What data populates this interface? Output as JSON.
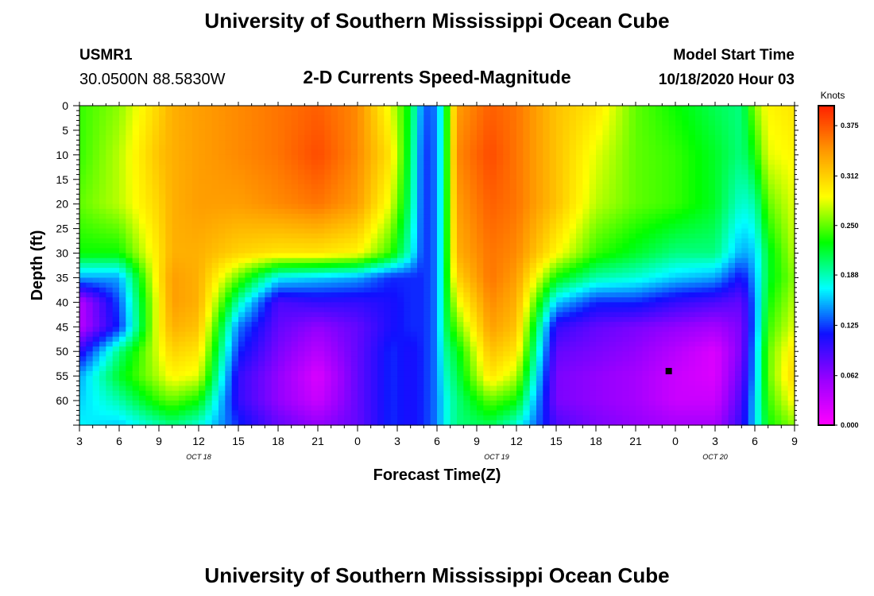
{
  "page": {
    "title": "University of Southern Mississippi Ocean Cube",
    "footer_title": "University of Southern Mississippi Ocean Cube",
    "station_id": "USMR1",
    "station_coords": "30.0500N 88.5830W",
    "model_start_label": "Model Start Time",
    "model_start_value": "10/18/2020 Hour 03"
  },
  "chart_data": {
    "type": "heatmap",
    "title": "2-D Currents Speed-Magnitude",
    "xlabel": "Forecast Time(Z)",
    "ylabel": "Depth (ft)",
    "x_range_hours": [
      0,
      54
    ],
    "y_range_ft": [
      0,
      65
    ],
    "x_tick_hours": [
      0,
      3,
      6,
      9,
      12,
      15,
      18,
      21,
      24,
      27,
      30,
      33,
      36,
      39,
      42,
      45,
      48,
      51,
      54
    ],
    "x_tick_labels": [
      "3",
      "6",
      "9",
      "12",
      "15",
      "18",
      "21",
      "0",
      "3",
      "6",
      "9",
      "12",
      "15",
      "18",
      "21",
      "0",
      "3",
      "6",
      "9"
    ],
    "date_labels": [
      {
        "hour": 9,
        "text": "OCT 18"
      },
      {
        "hour": 31.5,
        "text": "OCT 19"
      },
      {
        "hour": 48,
        "text": "OCT 20"
      }
    ],
    "y_ticks": [
      0,
      5,
      10,
      15,
      20,
      25,
      30,
      35,
      40,
      45,
      50,
      55,
      60
    ],
    "y_tick_labels": [
      "0",
      "5",
      "10",
      "15",
      "20",
      "25",
      "30",
      "35",
      "40",
      "45",
      "50",
      "55",
      "60"
    ],
    "colorbar": {
      "unit_label": "Knots",
      "range": [
        0,
        0.4
      ],
      "ticks": [
        0.0,
        0.062,
        0.125,
        0.188,
        0.25,
        0.312,
        0.375
      ],
      "tick_labels": [
        "0.000",
        "0.062",
        "0.125",
        "0.188",
        "0.250",
        "0.312",
        "0.375"
      ],
      "colors": [
        "#ff00ff",
        "#9900ff",
        "#1010ff",
        "#00ffff",
        "#00ff00",
        "#ffff00",
        "#ff9900",
        "#ff2000"
      ]
    },
    "depths_ft": [
      0,
      10,
      20,
      30,
      35,
      40,
      45,
      50,
      55,
      60,
      65
    ],
    "times_hours": [
      0,
      3,
      6,
      7,
      9,
      12,
      15,
      18,
      21,
      23.5,
      25,
      26,
      27,
      27.5,
      28.5,
      31,
      33,
      36,
      39,
      42,
      45,
      48,
      50,
      51,
      52,
      54
    ],
    "speed_knots": [
      [
        0.24,
        0.24,
        0.25,
        0.23,
        0.15,
        0.04,
        0.04,
        0.1,
        0.15,
        0.16,
        0.17
      ],
      [
        0.26,
        0.27,
        0.27,
        0.23,
        0.15,
        0.13,
        0.12,
        0.2,
        0.22,
        0.19,
        0.16
      ],
      [
        0.31,
        0.32,
        0.31,
        0.3,
        0.3,
        0.29,
        0.29,
        0.28,
        0.27,
        0.24,
        0.19
      ],
      [
        0.33,
        0.33,
        0.33,
        0.33,
        0.34,
        0.34,
        0.33,
        0.31,
        0.29,
        0.25,
        0.2
      ],
      [
        0.34,
        0.34,
        0.34,
        0.33,
        0.33,
        0.33,
        0.32,
        0.3,
        0.28,
        0.23,
        0.18
      ],
      [
        0.35,
        0.35,
        0.34,
        0.31,
        0.25,
        0.19,
        0.14,
        0.12,
        0.1,
        0.1,
        0.12
      ],
      [
        0.36,
        0.36,
        0.35,
        0.3,
        0.17,
        0.09,
        0.08,
        0.07,
        0.06,
        0.06,
        0.08
      ],
      [
        0.37,
        0.38,
        0.36,
        0.3,
        0.16,
        0.1,
        0.06,
        0.04,
        0.02,
        0.03,
        0.06
      ],
      [
        0.35,
        0.35,
        0.34,
        0.29,
        0.15,
        0.1,
        0.08,
        0.08,
        0.08,
        0.08,
        0.08
      ],
      [
        0.28,
        0.3,
        0.28,
        0.24,
        0.12,
        0.11,
        0.11,
        0.12,
        0.12,
        0.12,
        0.12
      ],
      [
        0.22,
        0.21,
        0.2,
        0.18,
        0.12,
        0.12,
        0.12,
        0.11,
        0.11,
        0.11,
        0.11
      ],
      [
        0.13,
        0.12,
        0.12,
        0.12,
        0.12,
        0.12,
        0.12,
        0.12,
        0.12,
        0.12,
        0.12
      ],
      [
        0.14,
        0.14,
        0.14,
        0.14,
        0.14,
        0.14,
        0.14,
        0.14,
        0.14,
        0.14,
        0.14
      ],
      [
        0.2,
        0.2,
        0.2,
        0.2,
        0.2,
        0.2,
        0.2,
        0.19,
        0.18,
        0.17,
        0.17
      ],
      [
        0.34,
        0.35,
        0.34,
        0.33,
        0.31,
        0.28,
        0.25,
        0.22,
        0.21,
        0.2,
        0.2
      ],
      [
        0.37,
        0.38,
        0.37,
        0.36,
        0.36,
        0.35,
        0.34,
        0.32,
        0.3,
        0.25,
        0.21
      ],
      [
        0.36,
        0.36,
        0.36,
        0.35,
        0.34,
        0.33,
        0.32,
        0.3,
        0.27,
        0.23,
        0.18
      ],
      [
        0.32,
        0.32,
        0.32,
        0.29,
        0.23,
        0.16,
        0.1,
        0.08,
        0.07,
        0.07,
        0.09
      ],
      [
        0.3,
        0.28,
        0.27,
        0.24,
        0.19,
        0.12,
        0.08,
        0.07,
        0.06,
        0.06,
        0.07
      ],
      [
        0.25,
        0.25,
        0.25,
        0.22,
        0.18,
        0.12,
        0.07,
        0.06,
        0.05,
        0.05,
        0.06
      ],
      [
        0.23,
        0.24,
        0.24,
        0.2,
        0.16,
        0.1,
        0.06,
        0.04,
        0.03,
        0.03,
        0.05
      ],
      [
        0.21,
        0.22,
        0.22,
        0.2,
        0.15,
        0.09,
        0.05,
        0.02,
        0.02,
        0.03,
        0.05
      ],
      [
        0.2,
        0.2,
        0.18,
        0.15,
        0.11,
        0.08,
        0.07,
        0.07,
        0.08,
        0.09,
        0.1
      ],
      [
        0.26,
        0.23,
        0.19,
        0.16,
        0.15,
        0.14,
        0.14,
        0.15,
        0.15,
        0.16,
        0.16
      ],
      [
        0.29,
        0.28,
        0.25,
        0.22,
        0.22,
        0.23,
        0.24,
        0.25,
        0.25,
        0.24,
        0.23
      ],
      [
        0.3,
        0.29,
        0.28,
        0.27,
        0.26,
        0.27,
        0.28,
        0.3,
        0.31,
        0.29,
        0.26
      ]
    ],
    "marker_point": {
      "hour": 44.5,
      "depth_ft": 54
    }
  }
}
